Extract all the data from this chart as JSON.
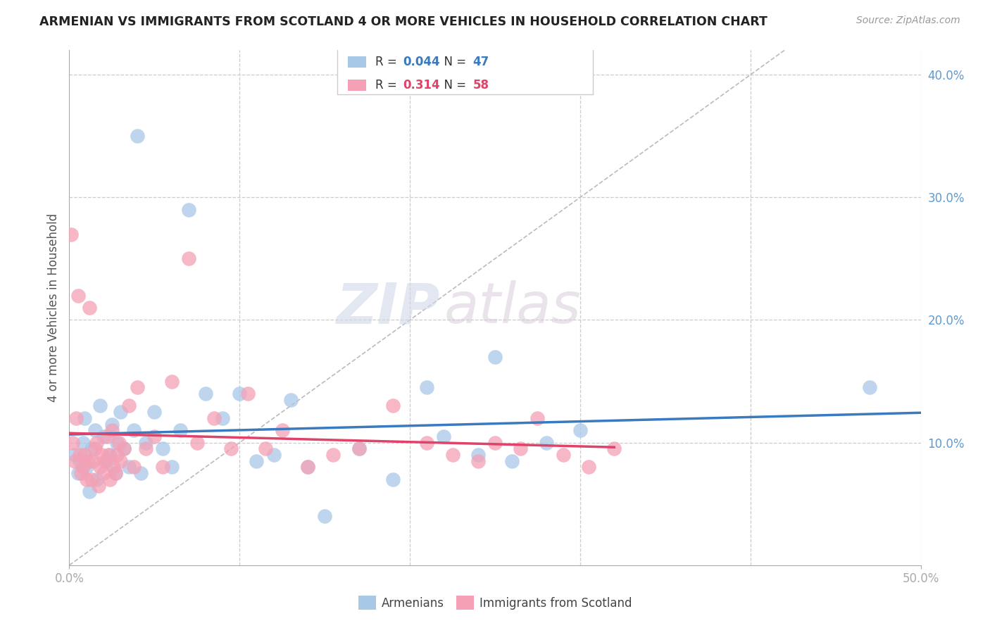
{
  "title": "ARMENIAN VS IMMIGRANTS FROM SCOTLAND 4 OR MORE VEHICLES IN HOUSEHOLD CORRELATION CHART",
  "source": "Source: ZipAtlas.com",
  "ylabel": "4 or more Vehicles in Household",
  "xlim": [
    0.0,
    50.0
  ],
  "ylim": [
    0.0,
    42.0
  ],
  "xticks": [
    0.0,
    50.0
  ],
  "yticks": [
    10.0,
    20.0,
    30.0,
    40.0
  ],
  "ytick_grid": [
    10.0,
    20.0,
    30.0,
    40.0
  ],
  "xtick_grid": [
    10.0,
    20.0,
    30.0,
    40.0,
    50.0
  ],
  "legend_r_armenians": "0.044",
  "legend_n_armenians": "47",
  "legend_r_scotland": "0.314",
  "legend_n_scotland": "58",
  "watermark_zip": "ZIP",
  "watermark_atlas": "atlas",
  "blue_color": "#a8c8e8",
  "pink_color": "#f4a0b5",
  "armenians_x": [
    0.3,
    0.5,
    0.6,
    0.8,
    0.9,
    1.0,
    1.2,
    1.3,
    1.5,
    1.6,
    1.8,
    2.0,
    2.2,
    2.4,
    2.5,
    2.7,
    2.8,
    3.0,
    3.2,
    3.5,
    3.8,
    4.0,
    4.2,
    4.5,
    5.0,
    5.5,
    6.0,
    6.5,
    7.0,
    8.0,
    9.0,
    10.0,
    11.0,
    12.0,
    13.0,
    14.0,
    15.0,
    17.0,
    19.0,
    21.0,
    22.0,
    24.0,
    25.0,
    26.0,
    28.0,
    30.0,
    47.0
  ],
  "armenians_y": [
    9.0,
    7.5,
    8.5,
    10.0,
    12.0,
    8.0,
    6.0,
    9.5,
    11.0,
    7.0,
    13.0,
    10.5,
    8.5,
    9.0,
    11.5,
    7.5,
    10.0,
    12.5,
    9.5,
    8.0,
    11.0,
    35.0,
    7.5,
    10.0,
    12.5,
    9.5,
    8.0,
    11.0,
    29.0,
    14.0,
    12.0,
    14.0,
    8.5,
    9.0,
    13.5,
    8.0,
    4.0,
    9.5,
    7.0,
    14.5,
    10.5,
    9.0,
    17.0,
    8.5,
    10.0,
    11.0,
    14.5
  ],
  "scotland_x": [
    0.1,
    0.2,
    0.3,
    0.4,
    0.5,
    0.6,
    0.7,
    0.8,
    0.9,
    1.0,
    1.1,
    1.2,
    1.3,
    1.4,
    1.5,
    1.6,
    1.7,
    1.8,
    1.9,
    2.0,
    2.1,
    2.2,
    2.3,
    2.4,
    2.5,
    2.6,
    2.7,
    2.8,
    2.9,
    3.0,
    3.2,
    3.5,
    3.8,
    4.0,
    4.5,
    5.0,
    5.5,
    6.0,
    7.0,
    7.5,
    8.5,
    9.5,
    10.5,
    11.5,
    12.5,
    14.0,
    15.5,
    17.0,
    19.0,
    21.0,
    22.5,
    24.0,
    25.0,
    26.5,
    27.5,
    29.0,
    30.5,
    32.0
  ],
  "scotland_y": [
    27.0,
    10.0,
    8.5,
    12.0,
    22.0,
    9.0,
    7.5,
    8.0,
    9.0,
    7.0,
    8.5,
    21.0,
    7.0,
    8.5,
    9.5,
    10.0,
    6.5,
    8.0,
    9.0,
    7.5,
    8.5,
    10.5,
    9.0,
    7.0,
    11.0,
    8.0,
    7.5,
    9.0,
    10.0,
    8.5,
    9.5,
    13.0,
    8.0,
    14.5,
    9.5,
    10.5,
    8.0,
    15.0,
    25.0,
    10.0,
    12.0,
    9.5,
    14.0,
    9.5,
    11.0,
    8.0,
    9.0,
    9.5,
    13.0,
    10.0,
    9.0,
    8.5,
    10.0,
    9.5,
    12.0,
    9.0,
    8.0,
    9.5
  ],
  "blue_line_color": "#3a7abf",
  "pink_line_color": "#e0436a",
  "diag_line_color": "#bbbbbb",
  "grid_color": "#cccccc",
  "background_color": "#ffffff",
  "tick_color": "#5b9bd5"
}
